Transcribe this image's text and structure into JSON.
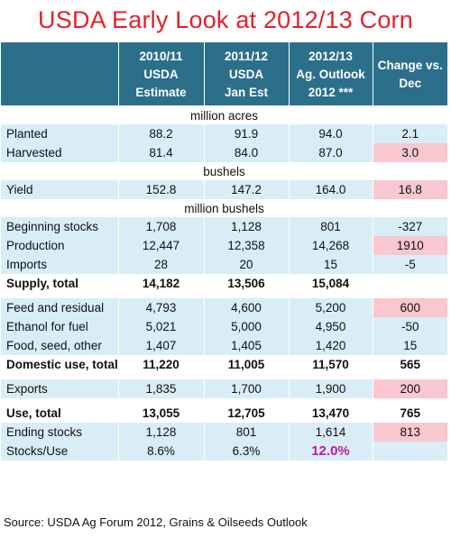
{
  "title": "USDA Early Look at 2012/13 Corn",
  "headers": [
    {
      "line1": "",
      "line2": "",
      "line3": ""
    },
    {
      "line1": "2010/11",
      "line2": "USDA",
      "line3": "Estimate"
    },
    {
      "line1": "2011/12",
      "line2": "USDA",
      "line3": "Jan Est"
    },
    {
      "line1": "2012/13",
      "line2": "Ag. Outlook",
      "line3": "2012 ***"
    },
    {
      "line1": "",
      "line2": "Change vs.",
      "line3": "Dec"
    }
  ],
  "units": {
    "acres": "million acres",
    "bushels": "bushels",
    "million_bushels": "million bushels"
  },
  "rows": {
    "planted": {
      "label": "Planted",
      "v1": "88.2",
      "v2": "91.9",
      "v3": "94.0",
      "chg": "2.1"
    },
    "harvested": {
      "label": "Harvested",
      "v1": "81.4",
      "v2": "84.0",
      "v3": "87.0",
      "chg": "3.0"
    },
    "yield": {
      "label": "Yield",
      "v1": "152.8",
      "v2": "147.2",
      "v3": "164.0",
      "chg": "16.8"
    },
    "beginning": {
      "label": "Beginning stocks",
      "v1": "1,708",
      "v2": "1,128",
      "v3": "801",
      "chg": "-327"
    },
    "production": {
      "label": "Production",
      "v1": "12,447",
      "v2": "12,358",
      "v3": "14,268",
      "chg": "1910"
    },
    "imports": {
      "label": "Imports",
      "v1": "28",
      "v2": "20",
      "v3": "15",
      "chg": "-5"
    },
    "supply": {
      "label": "Supply, total",
      "v1": "14,182",
      "v2": "13,506",
      "v3": "15,084",
      "chg": ""
    },
    "feed": {
      "label": "Feed and residual",
      "v1": "4,793",
      "v2": "4,600",
      "v3": "5,200",
      "chg": "600"
    },
    "ethanol": {
      "label": "Ethanol for fuel",
      "v1": "5,021",
      "v2": "5,000",
      "v3": "4,950",
      "chg": "-50"
    },
    "food": {
      "label": "Food, seed, other",
      "v1": "1,407",
      "v2": "1,405",
      "v3": "1,420",
      "chg": "15"
    },
    "domestic": {
      "label": "Domestic use, total",
      "v1": "11,220",
      "v2": "11,005",
      "v3": "11,570",
      "chg": "565"
    },
    "exports": {
      "label": "Exports",
      "v1": "1,835",
      "v2": "1,700",
      "v3": "1,900",
      "chg": "200"
    },
    "use": {
      "label": "Use, total",
      "v1": "13,055",
      "v2": "12,705",
      "v3": "13,470",
      "chg": "765"
    },
    "ending": {
      "label": "Ending stocks",
      "v1": "1,128",
      "v2": "801",
      "v3": "1,614",
      "chg": "813"
    },
    "stocks_use": {
      "label": "Stocks/Use",
      "v1": "8.6%",
      "v2": "6.3%",
      "v3": "12.0%",
      "chg": ""
    }
  },
  "colors": {
    "title": "#e4202a",
    "header_bg": "#2b6f8a",
    "row_tint": "#d9edf7",
    "highlight": "#f9c7cf",
    "emphasis": "#c0189a"
  },
  "source": "Source:  USDA Ag Forum 2012, Grains & Oilseeds Outlook"
}
